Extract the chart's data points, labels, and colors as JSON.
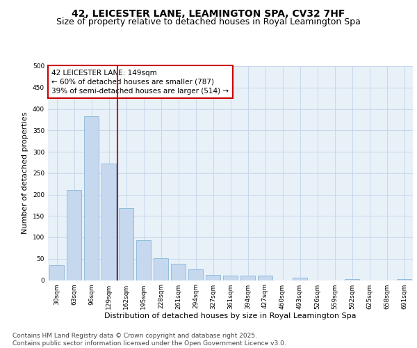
{
  "title": "42, LEICESTER LANE, LEAMINGTON SPA, CV32 7HF",
  "subtitle": "Size of property relative to detached houses in Royal Leamington Spa",
  "xlabel": "Distribution of detached houses by size in Royal Leamington Spa",
  "ylabel": "Number of detached properties",
  "categories": [
    "30sqm",
    "63sqm",
    "96sqm",
    "129sqm",
    "162sqm",
    "195sqm",
    "228sqm",
    "261sqm",
    "294sqm",
    "327sqm",
    "361sqm",
    "394sqm",
    "427sqm",
    "460sqm",
    "493sqm",
    "526sqm",
    "559sqm",
    "592sqm",
    "625sqm",
    "658sqm",
    "691sqm"
  ],
  "values": [
    35,
    210,
    383,
    272,
    168,
    93,
    52,
    39,
    25,
    12,
    10,
    10,
    10,
    0,
    5,
    0,
    0,
    3,
    0,
    0,
    3
  ],
  "bar_color": "#c5d8ee",
  "bar_edge_color": "#7aafd4",
  "grid_color": "#c8d8ec",
  "background_color": "#e8f0f8",
  "vline_color": "#cc0000",
  "vline_x_index": 3.5,
  "annotation_text": "42 LEICESTER LANE: 149sqm\n← 60% of detached houses are smaller (787)\n39% of semi-detached houses are larger (514) →",
  "annotation_box_edgecolor": "#cc0000",
  "ylim": [
    0,
    500
  ],
  "yticks": [
    0,
    50,
    100,
    150,
    200,
    250,
    300,
    350,
    400,
    450,
    500
  ],
  "footer": "Contains HM Land Registry data © Crown copyright and database right 2025.\nContains public sector information licensed under the Open Government Licence v3.0.",
  "title_fontsize": 10,
  "subtitle_fontsize": 9,
  "axis_label_fontsize": 8,
  "tick_fontsize": 6.5,
  "annotation_fontsize": 7.5,
  "footer_fontsize": 6.5
}
